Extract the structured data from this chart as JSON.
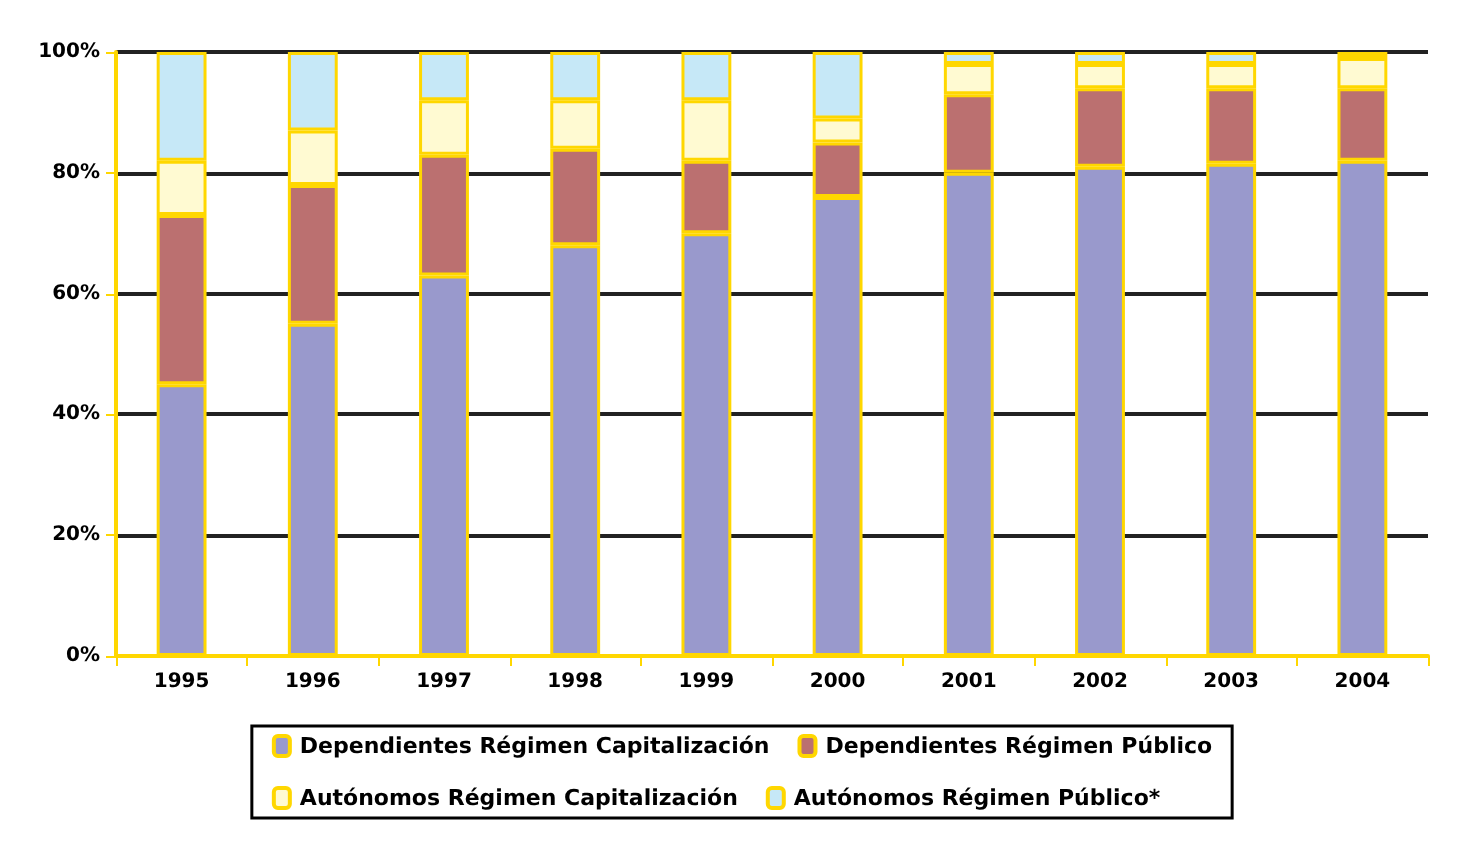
{
  "chart_data": {
    "type": "bar",
    "stacked": true,
    "categories": [
      "1995",
      "1996",
      "1997",
      "1998",
      "1999",
      "2000",
      "2001",
      "2002",
      "2003",
      "2004"
    ],
    "series": [
      {
        "name": "Dependientes Régimen Capitalización",
        "color": "#9999cc",
        "values": [
          45,
          55,
          63,
          68,
          70,
          76,
          80,
          81,
          81.5,
          82
        ]
      },
      {
        "name": "Dependientes Régimen Público",
        "color": "#bb7070",
        "values": [
          28,
          23,
          20,
          16,
          12,
          9,
          13,
          13,
          12.5,
          12
        ]
      },
      {
        "name": "Autónomos Régimen Capitalización",
        "color": "#fffad2",
        "values": [
          9,
          9,
          9,
          8,
          10,
          4,
          5,
          4,
          4,
          5
        ]
      },
      {
        "name": "Autónomos Régimen Público*",
        "color": "#c6e8f7",
        "values": [
          18,
          13,
          8,
          8,
          8,
          11,
          2,
          2,
          2,
          1
        ]
      }
    ],
    "ylim": [
      0,
      100
    ],
    "yticks": [
      {
        "value": 0,
        "label": "0%"
      },
      {
        "value": 20,
        "label": "20%"
      },
      {
        "value": 40,
        "label": "40%"
      },
      {
        "value": 60,
        "label": "60%"
      },
      {
        "value": 80,
        "label": "80%"
      },
      {
        "value": 100,
        "label": "100%"
      }
    ],
    "grid": "y",
    "legend": "bottom"
  }
}
